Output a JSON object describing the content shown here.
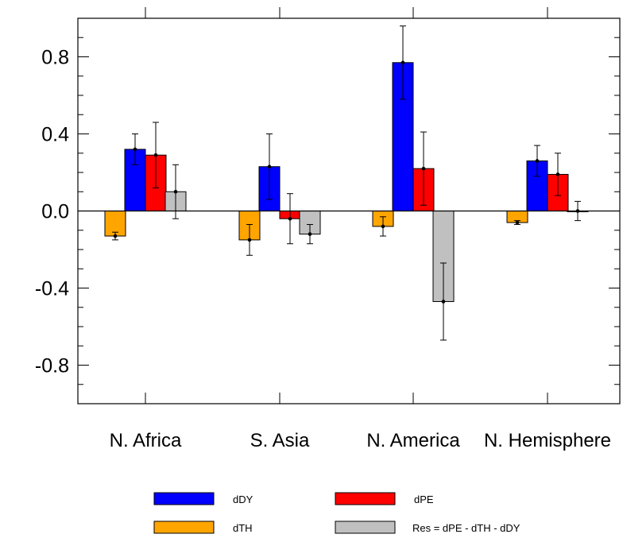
{
  "chart_data": {
    "type": "bar",
    "categories": [
      "N. Africa",
      "S. Asia",
      "N. America",
      "N. Hemisphere"
    ],
    "series": [
      {
        "name": "dTH",
        "color": "#FFA500",
        "values": [
          -0.13,
          -0.15,
          -0.08,
          -0.06
        ],
        "error": [
          0.02,
          0.08,
          0.05,
          0.01
        ]
      },
      {
        "name": "dDY",
        "color": "#0000FF",
        "values": [
          0.32,
          0.23,
          0.77,
          0.26
        ],
        "error": [
          0.08,
          0.17,
          0.19,
          0.08
        ]
      },
      {
        "name": "dPE",
        "color": "#FF0000",
        "values": [
          0.29,
          -0.04,
          0.22,
          0.19
        ],
        "error": [
          0.17,
          0.13,
          0.19,
          0.11
        ]
      },
      {
        "name": "Res = dPE - dTH - dDY",
        "color": "#C0C0C0",
        "values": [
          0.1,
          -0.12,
          -0.47,
          0.0
        ],
        "error": [
          0.14,
          0.05,
          0.2,
          0.05
        ]
      }
    ],
    "yticks": [
      "-0.8",
      "-0.4",
      "0.0",
      "0.4",
      "0.8"
    ],
    "ylim": [
      -1.0,
      1.0
    ],
    "title": "",
    "xlabel": "",
    "ylabel": "",
    "legend_position": "bottom"
  }
}
